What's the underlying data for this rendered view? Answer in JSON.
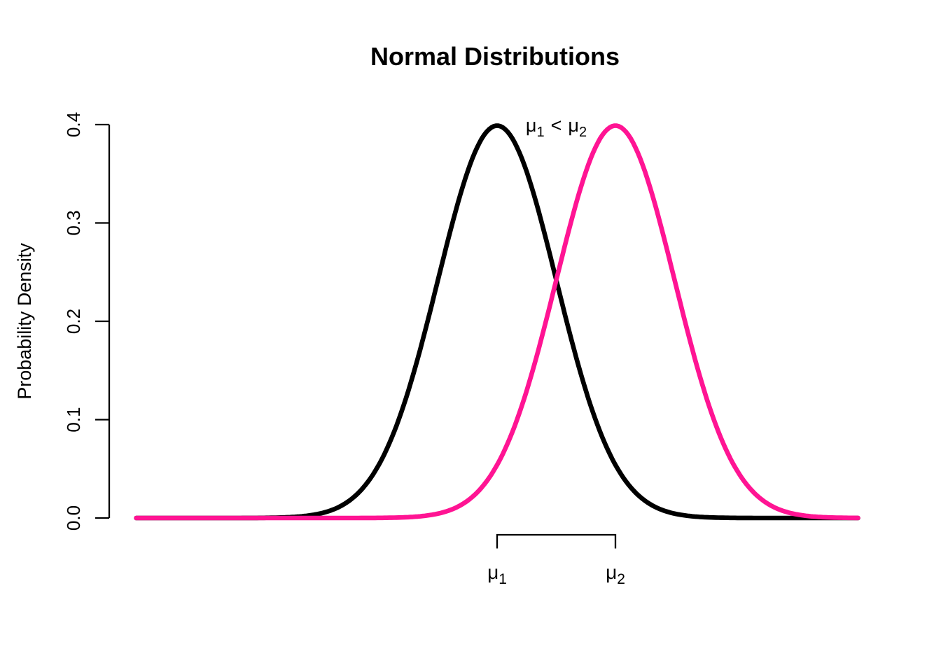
{
  "title": "Normal Distributions",
  "y_axis": {
    "label": "Probability Density",
    "tick_labels": [
      "0.0",
      "0.1",
      "0.2",
      "0.3",
      "0.4"
    ]
  },
  "annotation": {
    "mu": "μ",
    "sub1": "1",
    "comparator": "<",
    "sub2": "2",
    "color": "#595959"
  },
  "x_labels": {
    "mu1": {
      "base": "μ",
      "sub": "1"
    },
    "mu2": {
      "base": "μ",
      "sub": "2"
    }
  },
  "colors": {
    "background": "#FFFFFF",
    "axis": "#000000",
    "curve1": "#000000",
    "curve2": "#FF1493"
  },
  "chart_data": {
    "type": "line",
    "title": "Normal Distributions",
    "xlabel": "",
    "ylabel": "Probability Density",
    "xlim": [
      -6.1,
      6.1
    ],
    "ylim": [
      0,
      0.4
    ],
    "yticks": [
      0.0,
      0.1,
      0.2,
      0.3,
      0.4
    ],
    "xticks": [],
    "grid": false,
    "legend": "none",
    "series": [
      {
        "name": "distribution-1",
        "curve": "normal-density",
        "mean": 0,
        "sd": 1,
        "peak_density": 0.3989,
        "color": "#000000",
        "line_width": 6.6
      },
      {
        "name": "distribution-2",
        "curve": "normal-density",
        "mean": 2,
        "sd": 1,
        "peak_density": 0.3989,
        "color": "#FF1493",
        "line_width": 6.6
      }
    ],
    "annotations": [
      {
        "id": "inequality",
        "text": "μ1 < μ2",
        "x": 1.0,
        "y": 0.4,
        "color": "#595959"
      },
      {
        "id": "bracket",
        "type": "range-bracket",
        "from_x": 0,
        "to_x": 2,
        "location": "below-axis"
      },
      {
        "id": "mu1-tick-label",
        "text": "μ1",
        "x": 0,
        "location": "below-axis"
      },
      {
        "id": "mu2-tick-label",
        "text": "μ2",
        "x": 2,
        "location": "below-axis"
      }
    ]
  }
}
